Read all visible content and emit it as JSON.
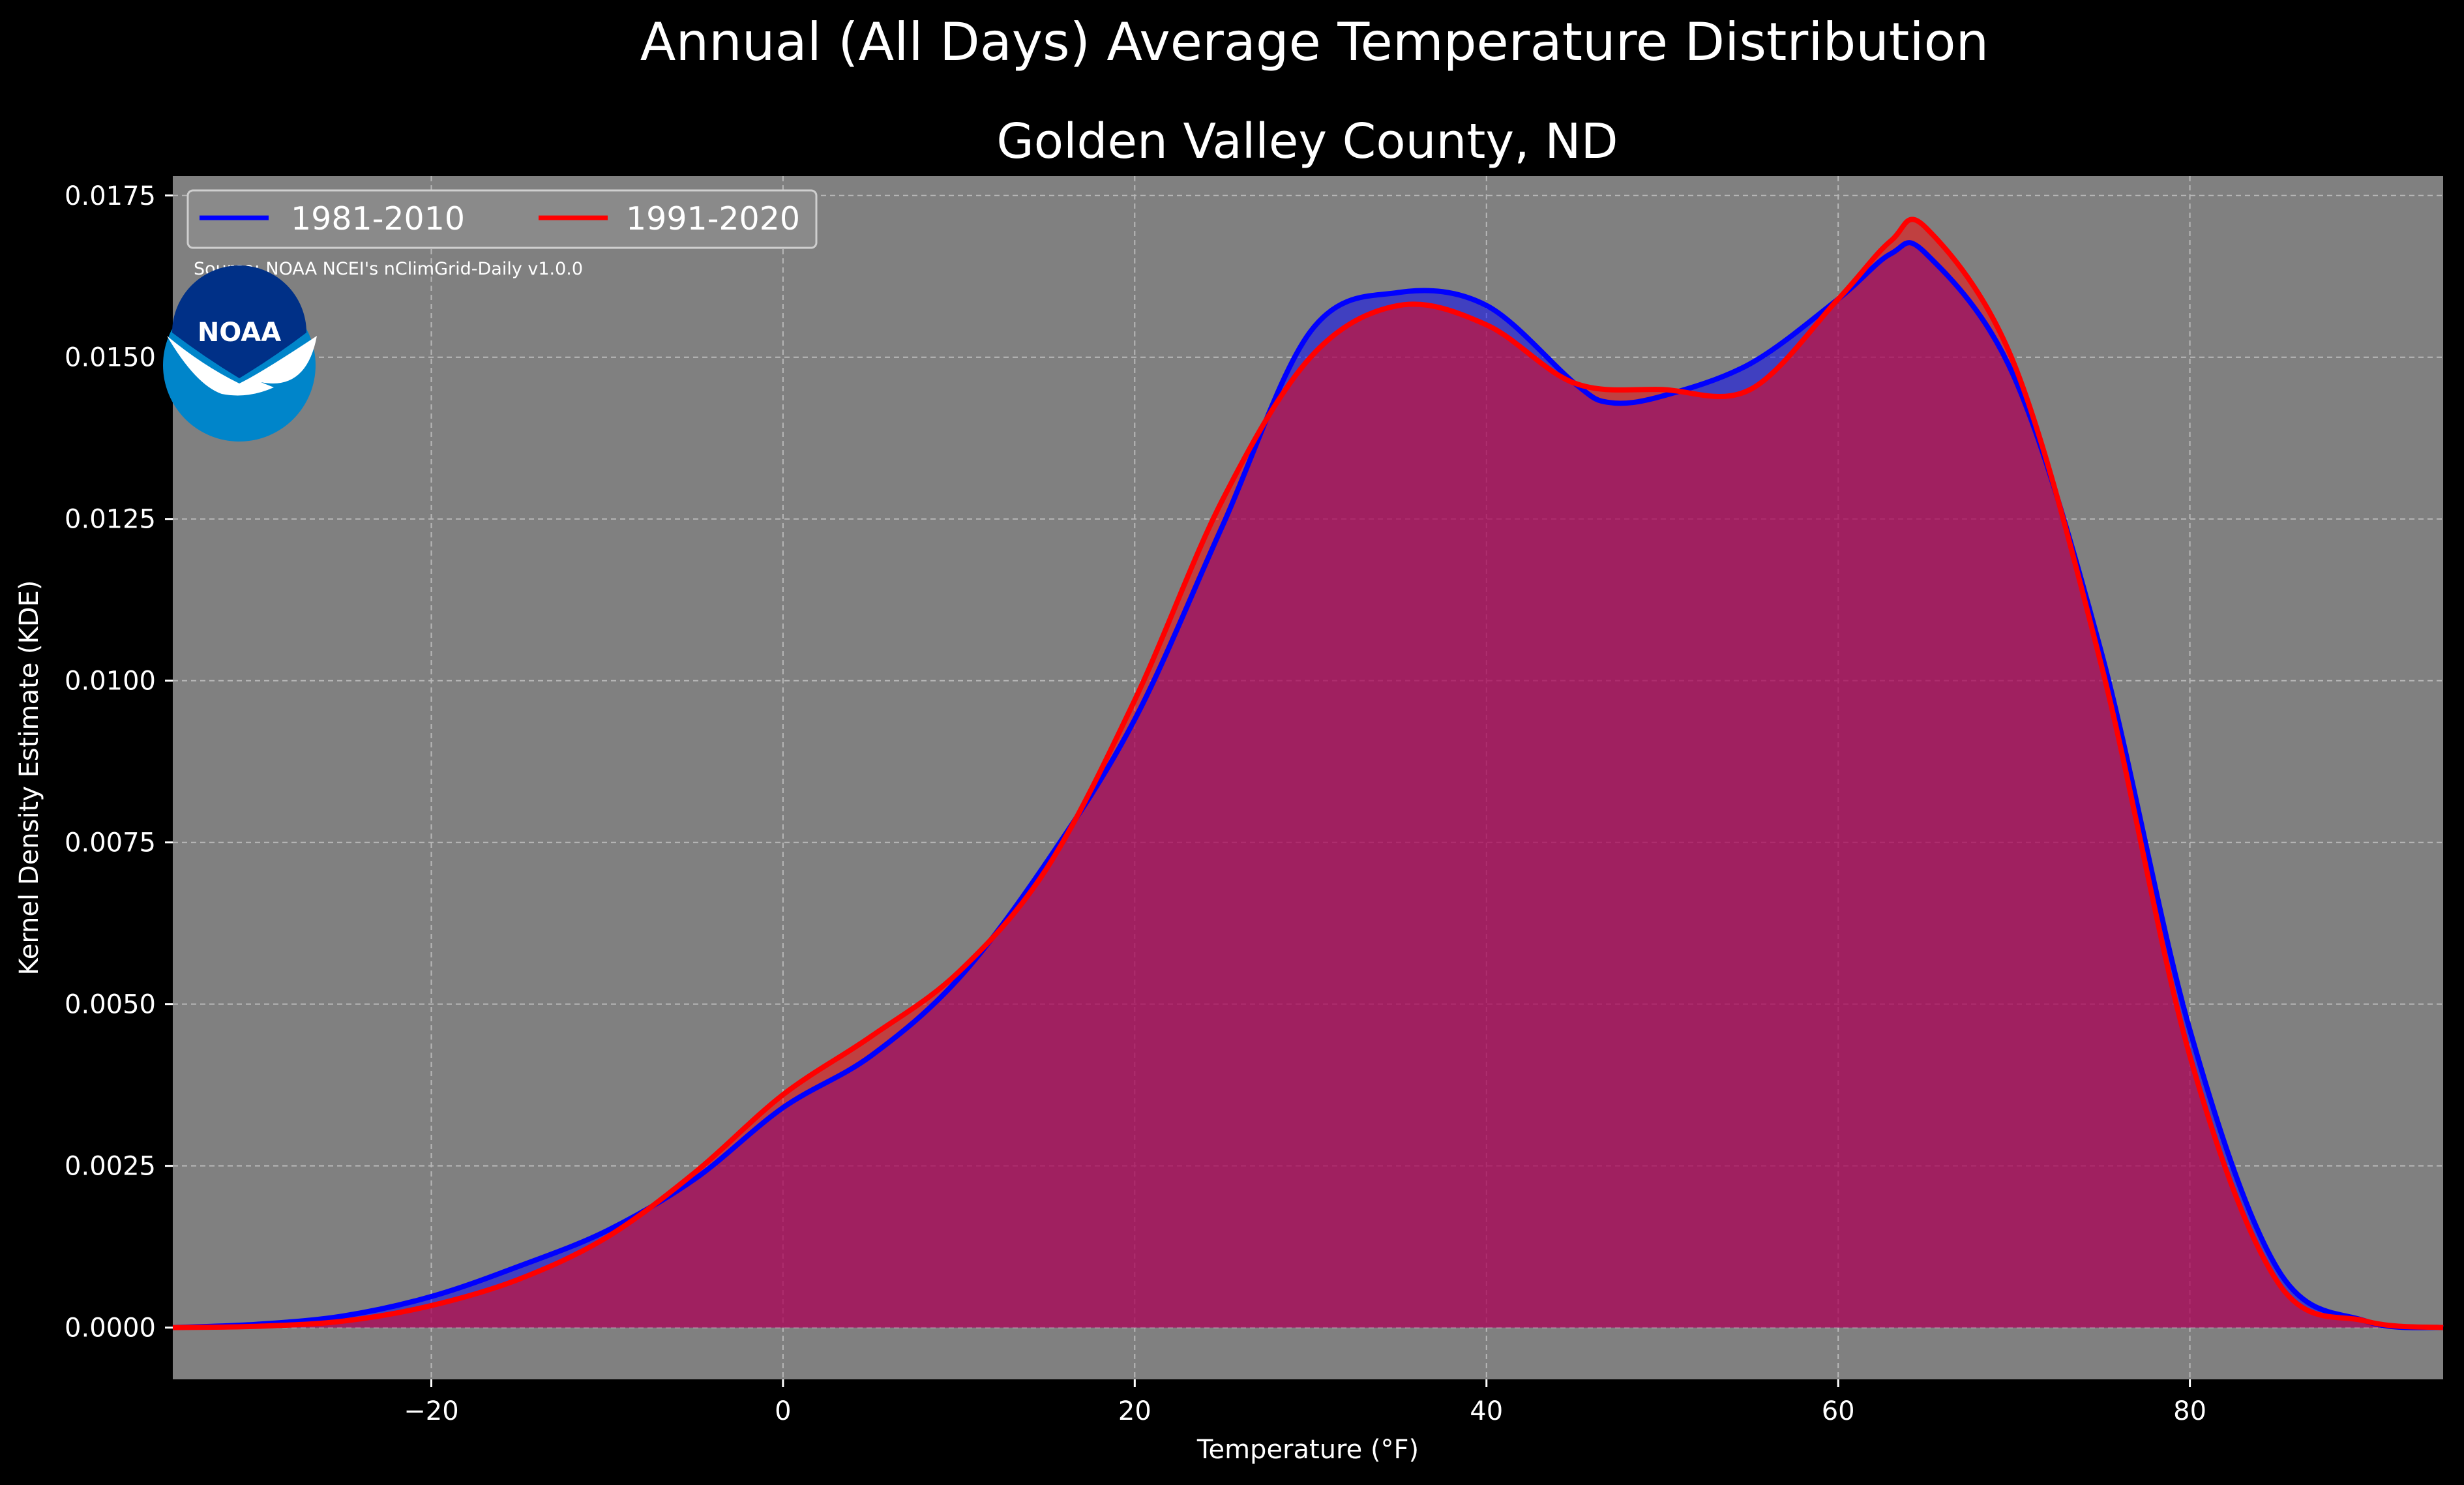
{
  "figure": {
    "suptitle": "Annual (All Days) Average Temperature Distribution",
    "background_color": "#000000",
    "plot_background_color": "#808080",
    "logo": {
      "icon": "noaa-logo",
      "text": "NOAA",
      "colors": {
        "outer": "#0085CA",
        "inner": "#003087",
        "bird": "#ffffff"
      }
    },
    "source_note": "Source: NOAA NCEI's nClimGrid-Daily v1.0.0"
  },
  "chart_data": {
    "type": "area",
    "title": "Golden Valley County, ND",
    "xlabel": "Temperature (°F)",
    "ylabel": "Kernel Density Estimate (KDE)",
    "xlim": [
      -34.7,
      94.4
    ],
    "ylim": [
      -0.0008,
      0.0178
    ],
    "x_ticks": [
      -20,
      0,
      20,
      40,
      60,
      80
    ],
    "x_tick_labels": [
      "−20",
      "0",
      "20",
      "40",
      "60",
      "80"
    ],
    "y_ticks": [
      0,
      0.0025,
      0.005,
      0.0075,
      0.01,
      0.0125,
      0.015,
      0.0175
    ],
    "y_tick_labels": [
      "0.0000",
      "0.0025",
      "0.0050",
      "0.0075",
      "0.0100",
      "0.0125",
      "0.0150",
      "0.0175"
    ],
    "grid": true,
    "legend_position": "top-left",
    "series": [
      {
        "name": "1981-2010",
        "color": "#0000ff",
        "fill": "#0000ff",
        "points": [
          [
            -34.7,
            0.0
          ],
          [
            -30,
            5e-05
          ],
          [
            -25,
            0.00018
          ],
          [
            -20,
            0.00048
          ],
          [
            -15,
            0.00095
          ],
          [
            -10,
            0.0015
          ],
          [
            -5,
            0.0023
          ],
          [
            0,
            0.0034
          ],
          [
            5,
            0.0042
          ],
          [
            10,
            0.0054
          ],
          [
            15,
            0.0072
          ],
          [
            20,
            0.0094
          ],
          [
            25,
            0.0124
          ],
          [
            30,
            0.0154
          ],
          [
            35,
            0.016
          ],
          [
            40,
            0.0158
          ],
          [
            45,
            0.0146
          ],
          [
            47,
            0.0143
          ],
          [
            50,
            0.0144
          ],
          [
            55,
            0.0149
          ],
          [
            60,
            0.0159
          ],
          [
            63,
            0.0166
          ],
          [
            65,
            0.0166
          ],
          [
            70,
            0.0147
          ],
          [
            75,
            0.0104
          ],
          [
            80,
            0.0046
          ],
          [
            85,
            0.0009
          ],
          [
            90,
            0.0001
          ],
          [
            94.4,
            0.0
          ]
        ]
      },
      {
        "name": "1991-2020",
        "color": "#ff0000",
        "fill": "#ff0000",
        "points": [
          [
            -34.7,
            0.0
          ],
          [
            -30,
            2e-05
          ],
          [
            -25,
            0.0001
          ],
          [
            -20,
            0.00034
          ],
          [
            -15,
            0.00075
          ],
          [
            -10,
            0.0014
          ],
          [
            -5,
            0.0024
          ],
          [
            0,
            0.0036
          ],
          [
            5,
            0.0045
          ],
          [
            10,
            0.0055
          ],
          [
            15,
            0.0071
          ],
          [
            20,
            0.0097
          ],
          [
            25,
            0.0128
          ],
          [
            30,
            0.015
          ],
          [
            35,
            0.0158
          ],
          [
            40,
            0.0155
          ],
          [
            45,
            0.0146
          ],
          [
            50,
            0.0145
          ],
          [
            55,
            0.0145
          ],
          [
            60,
            0.0159
          ],
          [
            63,
            0.0168
          ],
          [
            65,
            0.017
          ],
          [
            70,
            0.0149
          ],
          [
            75,
            0.0102
          ],
          [
            80,
            0.0042
          ],
          [
            85,
            0.0007
          ],
          [
            90,
            0.0001
          ],
          [
            94.4,
            0.0
          ]
        ]
      }
    ]
  }
}
